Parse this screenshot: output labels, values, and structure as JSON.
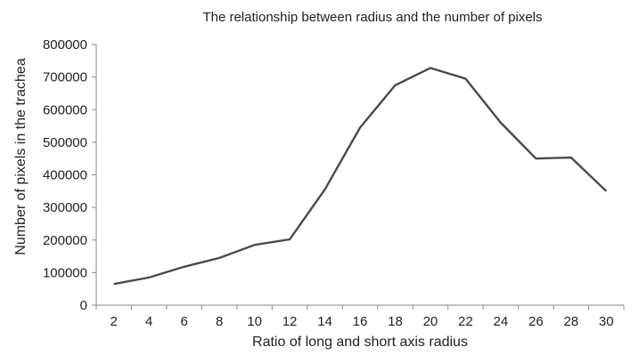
{
  "chart_data": {
    "type": "line",
    "title": "The relationship between radius and the number of pixels",
    "xlabel": "Ratio of long and short axis radius",
    "ylabel": "Number of pixels in the trachea",
    "categories": [
      "2",
      "4",
      "6",
      "8",
      "10",
      "12",
      "14",
      "16",
      "18",
      "20",
      "22",
      "24",
      "26",
      "28",
      "30"
    ],
    "series": [
      {
        "values": [
          65000,
          85000,
          118000,
          145000,
          185000,
          202000,
          355000,
          545000,
          675000,
          728000,
          695000,
          560000,
          450000,
          453000,
          350000
        ]
      }
    ],
    "ylim": [
      0,
      800000
    ],
    "yticks": [
      "0",
      "100000",
      "200000",
      "300000",
      "400000",
      "500000",
      "600000",
      "700000",
      "800000"
    ],
    "grid": false,
    "legend": "none",
    "colors": {
      "line": "#4a4a4a",
      "axis": "#8a8a8a",
      "text": "#222222"
    }
  }
}
